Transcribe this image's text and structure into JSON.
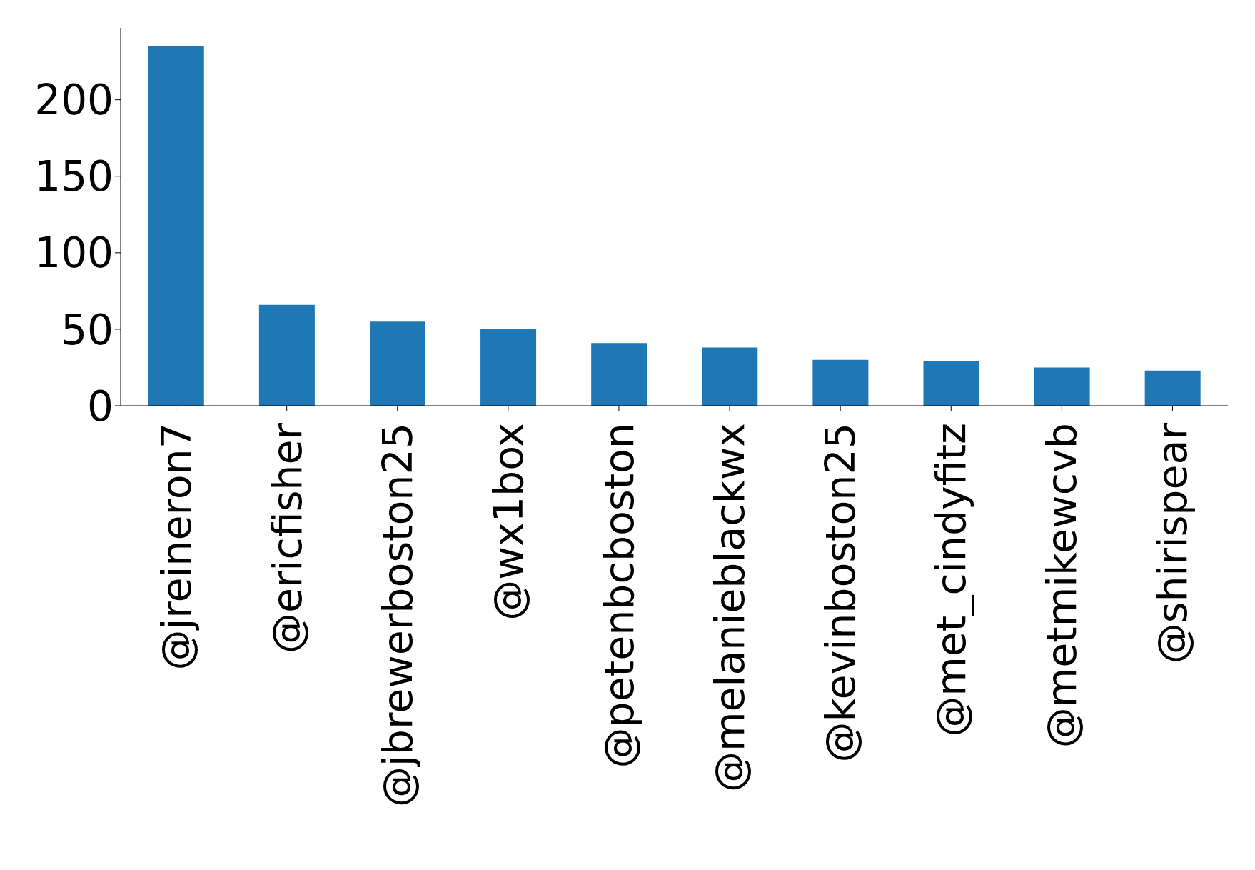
{
  "chart_data": {
    "type": "bar",
    "categories": [
      "@jreineron7",
      "@ericfisher",
      "@jbrewerboston25",
      "@wx1box",
      "@petenbcboston",
      "@melanieblackwx",
      "@kevinboston25",
      "@met_cindyfitz",
      "@metmikewcvb",
      "@shirispear"
    ],
    "values": [
      235,
      66,
      55,
      50,
      41,
      38,
      30,
      29,
      25,
      23
    ],
    "color": "#1f77b4",
    "ylim": [
      0,
      247
    ],
    "yticks": [
      0,
      50,
      100,
      150,
      200
    ]
  }
}
